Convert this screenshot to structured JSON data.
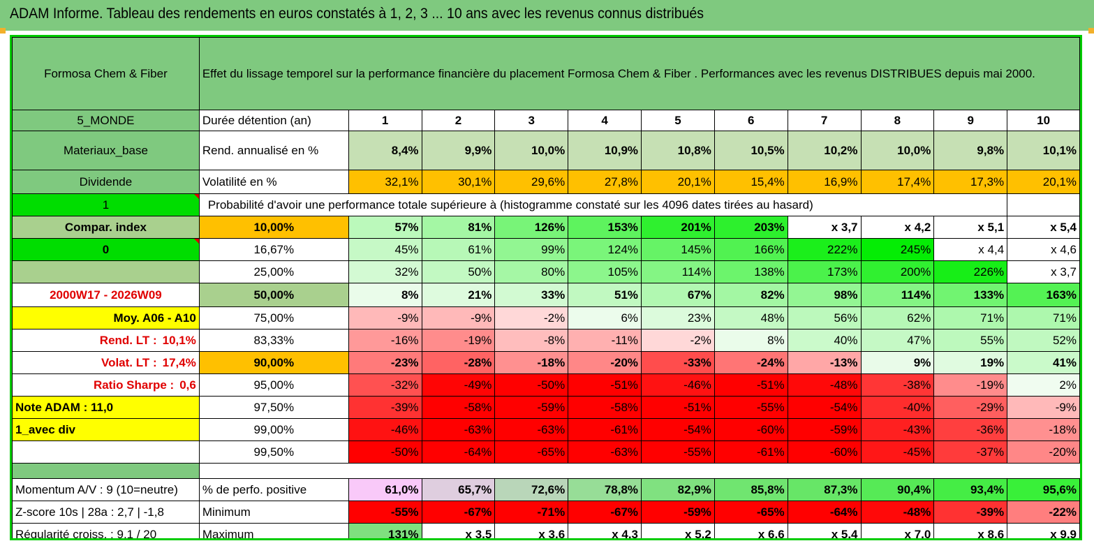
{
  "title": "ADAM Informe. Tableau des rendements en euros constatés à 1, 2, 3 ... 10 ans avec les revenus connus distribués",
  "header": {
    "asset_name": "Formosa Chem & Fiber",
    "description": "Effet du lissage temporel sur la performance financière du placement Formosa Chem & Fiber . Performances avec les revenus DISTRIBUES depuis mai 2000."
  },
  "left_panel": {
    "region": "5_MONDE",
    "sector": "Materiaux_base",
    "type": "Dividende",
    "flag1": "1",
    "compar_index": "Compar. index",
    "flag0": "0",
    "period": "2000W17 - 2026W09",
    "avg_label": "Moy. A06 - A10",
    "rend_lt_label": "Rend. LT :",
    "rend_lt_value": "10,1%",
    "volat_lt_label": "Volat. LT :",
    "volat_lt_value": "17,4%",
    "sharpe_label": "Ratio Sharpe :",
    "sharpe_value": "0,6",
    "note_adam": "Note ADAM : 11,0",
    "avec_div": "1_avec div"
  },
  "labels": {
    "duree": "Durée détention (an)",
    "rend": "Rend. annualisé en %",
    "volat": "Volatilité en %",
    "proba": "Probabilité d'avoir une performance totale supérieure à (histogramme constaté sur les 4096 dates tirées au hasard)"
  },
  "years": [
    "1",
    "2",
    "3",
    "4",
    "5",
    "6",
    "7",
    "8",
    "9",
    "10"
  ],
  "rend": [
    "8,4%",
    "9,9%",
    "10,0%",
    "10,9%",
    "10,8%",
    "10,5%",
    "10,2%",
    "10,0%",
    "9,8%",
    "10,1%"
  ],
  "volat": [
    "32,1%",
    "30,1%",
    "29,6%",
    "27,8%",
    "20,1%",
    "15,4%",
    "16,9%",
    "17,4%",
    "17,3%",
    "20,1%"
  ],
  "quantiles": [
    {
      "q": "10,00%",
      "values": [
        "57%",
        "81%",
        "126%",
        "153%",
        "201%",
        "203%",
        "x 3,7",
        "x 4,2",
        "x 5,1",
        "x 5,4"
      ]
    },
    {
      "q": "16,67%",
      "values": [
        "45%",
        "61%",
        "99%",
        "124%",
        "145%",
        "166%",
        "222%",
        "245%",
        "x 4,4",
        "x 4,6"
      ]
    },
    {
      "q": "25,00%",
      "values": [
        "32%",
        "50%",
        "80%",
        "105%",
        "114%",
        "138%",
        "173%",
        "200%",
        "226%",
        "x 3,7"
      ]
    },
    {
      "q": "50,00%",
      "values": [
        "8%",
        "21%",
        "33%",
        "51%",
        "67%",
        "82%",
        "98%",
        "114%",
        "133%",
        "163%"
      ]
    },
    {
      "q": "75,00%",
      "values": [
        "-9%",
        "-9%",
        "-2%",
        "6%",
        "23%",
        "48%",
        "56%",
        "62%",
        "71%",
        "71%"
      ]
    },
    {
      "q": "83,33%",
      "values": [
        "-16%",
        "-19%",
        "-8%",
        "-11%",
        "-2%",
        "8%",
        "40%",
        "47%",
        "55%",
        "52%"
      ]
    },
    {
      "q": "90,00%",
      "values": [
        "-23%",
        "-28%",
        "-18%",
        "-20%",
        "-33%",
        "-24%",
        "-13%",
        "9%",
        "19%",
        "41%"
      ]
    },
    {
      "q": "95,00%",
      "values": [
        "-32%",
        "-49%",
        "-50%",
        "-51%",
        "-46%",
        "-51%",
        "-48%",
        "-38%",
        "-19%",
        "2%"
      ]
    },
    {
      "q": "97,50%",
      "values": [
        "-39%",
        "-58%",
        "-59%",
        "-58%",
        "-51%",
        "-55%",
        "-54%",
        "-40%",
        "-29%",
        "-9%"
      ]
    },
    {
      "q": "99,00%",
      "values": [
        "-46%",
        "-63%",
        "-63%",
        "-61%",
        "-54%",
        "-60%",
        "-59%",
        "-43%",
        "-36%",
        "-18%"
      ]
    },
    {
      "q": "99,50%",
      "values": [
        "-50%",
        "-64%",
        "-65%",
        "-63%",
        "-55%",
        "-61%",
        "-60%",
        "-45%",
        "-37%",
        "-20%"
      ]
    }
  ],
  "bottom": [
    {
      "left": "Momentum A/V : 9 (10=neutre)",
      "label": "% de perfo. positive",
      "values": [
        "61,0%",
        "65,7%",
        "72,6%",
        "78,8%",
        "82,9%",
        "85,8%",
        "87,3%",
        "90,4%",
        "93,4%",
        "95,6%"
      ]
    },
    {
      "left": "Z-score 10s | 28a : 2,7 | -1,8",
      "label": "Minimum",
      "values": [
        "-55%",
        "-67%",
        "-71%",
        "-67%",
        "-59%",
        "-65%",
        "-64%",
        "-48%",
        "-39%",
        "-22%"
      ]
    },
    {
      "left": "Régularité croiss. : 9,1 / 20",
      "label": "Maximum",
      "values": [
        "131%",
        "x 3,5",
        "x 3,6",
        "x 4,3",
        "x 5,2",
        "x 6,6",
        "x 5,4",
        "x 7,0",
        "x 8,6",
        "x 9,9"
      ]
    }
  ],
  "colors": {
    "header_green": "#7fc97f",
    "bright_green": "#00dd00",
    "yellow": "#ffff00",
    "orange": "#ffc000",
    "deep_red": "#ff0000",
    "light_green": "#c6e0b4"
  }
}
